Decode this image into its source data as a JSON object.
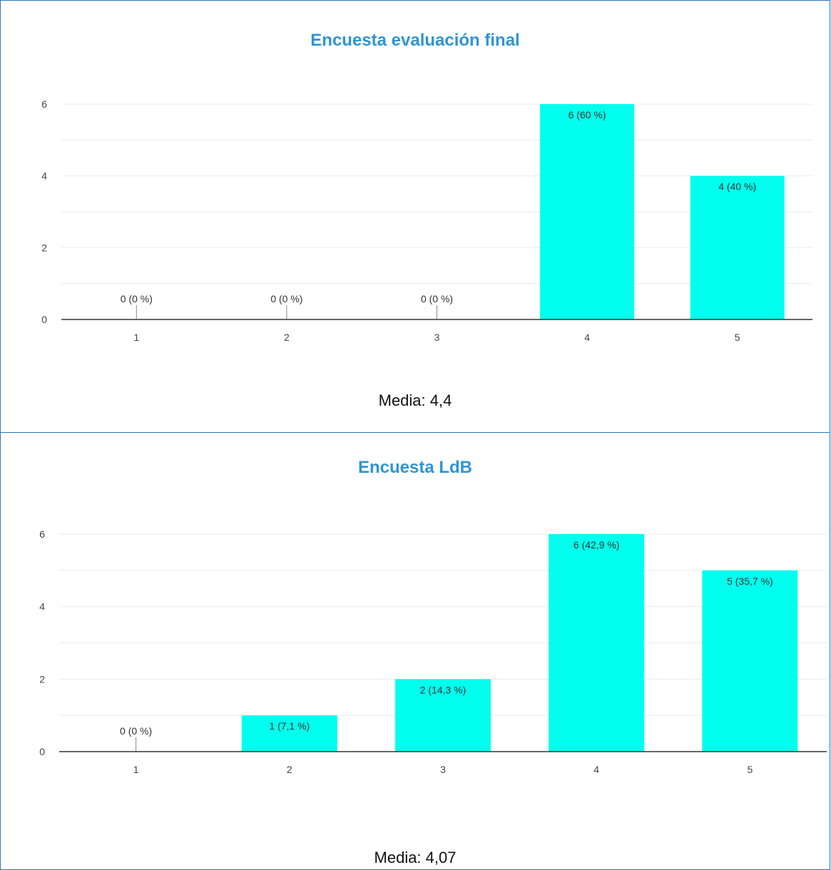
{
  "chart_data": [
    {
      "type": "bar",
      "title": "Encuesta evaluación final",
      "categories": [
        "1",
        "2",
        "3",
        "4",
        "5"
      ],
      "values": [
        0,
        0,
        0,
        6,
        4
      ],
      "labels": [
        "0 (0 %)",
        "0 (0 %)",
        "0 (0 %)",
        "6 (60 %)",
        "4 (40 %)"
      ],
      "yticks": [
        "0",
        "2",
        "4",
        "6"
      ],
      "ylim": [
        0,
        6
      ],
      "grid": true,
      "bar_color": "#00ffee",
      "footer": "Media: 4,4"
    },
    {
      "type": "bar",
      "title": "Encuesta LdB",
      "categories": [
        "1",
        "2",
        "3",
        "4",
        "5"
      ],
      "values": [
        0,
        1,
        2,
        6,
        5
      ],
      "labels": [
        "0 (0 %)",
        "1 (7,1 %)",
        "2 (14,3 %)",
        "6 (42,9 %)",
        "5 (35,7 %)"
      ],
      "yticks": [
        "0",
        "2",
        "4",
        "6"
      ],
      "ylim": [
        0,
        6
      ],
      "grid": true,
      "bar_color": "#00ffee",
      "footer": "Media: 4,07"
    }
  ]
}
